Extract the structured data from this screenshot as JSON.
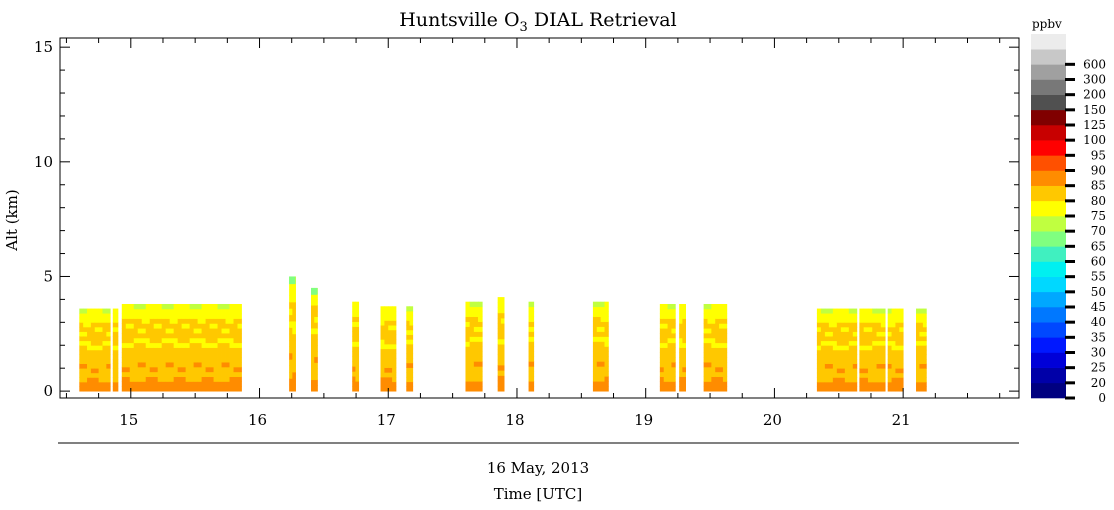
{
  "chart_data": {
    "type": "heatmap",
    "title": "Huntsville O",
    "title_subscript": "3",
    "title_suffix": " DIAL Retrieval",
    "ylabel": "Alt (km)",
    "xlabel_date": "16 May, 2013",
    "xlabel": "Time [UTC]",
    "xlim": [
      14.45,
      21.9
    ],
    "ylim": [
      -0.3,
      15.4
    ],
    "xticks": [
      "15",
      "16",
      "17",
      "18",
      "19",
      "20",
      "21"
    ],
    "yticks": [
      "0",
      "5",
      "10",
      "15"
    ],
    "colorbar": {
      "unit_label": "ppbv",
      "levels": [
        "0",
        "20",
        "25",
        "30",
        "35",
        "40",
        "45",
        "50",
        "55",
        "60",
        "65",
        "70",
        "75",
        "80",
        "85",
        "90",
        "95",
        "100",
        "125",
        "150",
        "200",
        "300",
        "600"
      ],
      "colors": [
        "#000080",
        "#0000a8",
        "#0000d8",
        "#0018ff",
        "#0048ff",
        "#0078ff",
        "#00a8ff",
        "#00d8ff",
        "#00f0f0",
        "#40f0c0",
        "#80ff80",
        "#c0ff40",
        "#ffff00",
        "#ffc800",
        "#ff8c00",
        "#ff5000",
        "#ff0000",
        "#c80000",
        "#800000",
        "#505050",
        "#787878",
        "#a0a0a0",
        "#c8c8c8",
        "#ececec"
      ]
    },
    "profiles": [
      {
        "x0": 14.6,
        "x1": 14.84,
        "top": 3.6
      },
      {
        "x0": 14.86,
        "x1": 14.9,
        "top": 3.6
      },
      {
        "x0": 14.93,
        "x1": 15.86,
        "top": 3.8
      },
      {
        "x0": 16.23,
        "x1": 16.28,
        "top": 5.0
      },
      {
        "x0": 16.4,
        "x1": 16.45,
        "top": 4.5
      },
      {
        "x0": 16.72,
        "x1": 16.77,
        "top": 3.9
      },
      {
        "x0": 16.94,
        "x1": 17.06,
        "top": 3.7
      },
      {
        "x0": 17.14,
        "x1": 17.19,
        "top": 3.7
      },
      {
        "x0": 17.6,
        "x1": 17.73,
        "top": 3.9
      },
      {
        "x0": 17.85,
        "x1": 17.9,
        "top": 4.1
      },
      {
        "x0": 18.09,
        "x1": 18.13,
        "top": 3.9
      },
      {
        "x0": 18.59,
        "x1": 18.71,
        "top": 3.9
      },
      {
        "x0": 19.11,
        "x1": 19.23,
        "top": 3.8
      },
      {
        "x0": 19.26,
        "x1": 19.31,
        "top": 3.8
      },
      {
        "x0": 19.45,
        "x1": 19.63,
        "top": 3.8
      },
      {
        "x0": 20.33,
        "x1": 20.64,
        "top": 3.6
      },
      {
        "x0": 20.66,
        "x1": 20.86,
        "top": 3.6
      },
      {
        "x0": 20.88,
        "x1": 21.0,
        "top": 3.6
      },
      {
        "x0": 21.1,
        "x1": 21.18,
        "top": 3.6
      }
    ]
  }
}
